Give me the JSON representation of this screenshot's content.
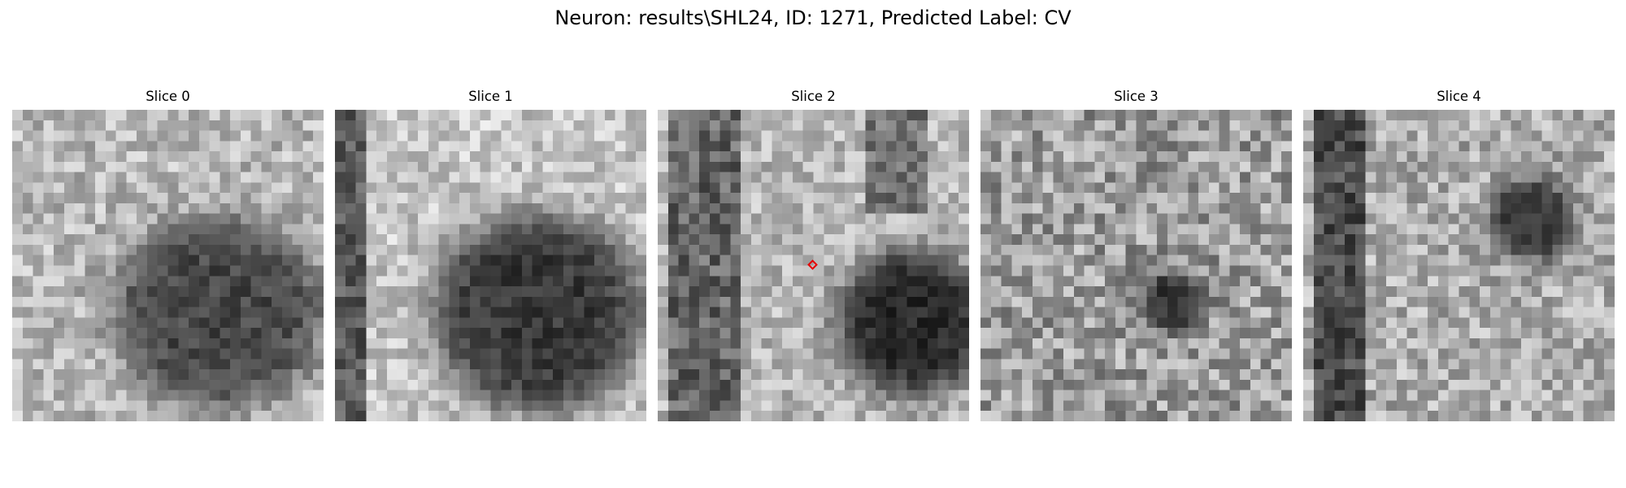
{
  "figure": {
    "title": "Neuron: results\\SHL24, ID: 1271, Predicted Label: CV"
  },
  "panels": [
    {
      "title": "Slice 0"
    },
    {
      "title": "Slice 1"
    },
    {
      "title": "Slice 2"
    },
    {
      "title": "Slice 3"
    },
    {
      "title": "Slice 4"
    }
  ],
  "colors": {
    "marker": "#e60000",
    "colormap": "grayscale"
  },
  "marker": {
    "slice_index": 2,
    "shape": "diamond"
  }
}
